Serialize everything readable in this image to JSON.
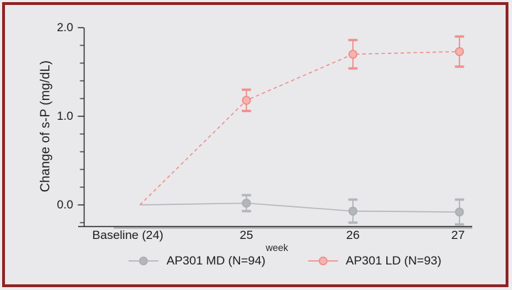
{
  "frame": {
    "border_color": "#8e2426",
    "background_color": "#e9e9eb"
  },
  "chart_data": {
    "type": "line",
    "title": "",
    "xlabel": "week",
    "ylabel": "Change of s-P (mg/dL)",
    "categories": [
      "Baseline (24)",
      "25",
      "26",
      "27"
    ],
    "x_tick_labels": [
      "Baseline (24)",
      "25",
      "26",
      "27"
    ],
    "y_tick_labels": [
      "0.0",
      "1.0",
      "2.0"
    ],
    "y_major_ticks": [
      0.0,
      1.0,
      2.0
    ],
    "y_minor_tick_step": 0.2,
    "ylim": [
      -0.24,
      2.0
    ],
    "grid": false,
    "legend_position": "bottom",
    "axis_color": "#2b2b2b",
    "series": [
      {
        "name": "AP301 MD (N=94)",
        "color": "#b4b7ba",
        "marker_fill": "#b4b7ba",
        "marker_stroke": "#aaadb0",
        "line_style": "solid",
        "values": [
          0.0,
          0.02,
          -0.07,
          -0.08
        ],
        "errors": [
          null,
          0.09,
          0.13,
          0.14
        ]
      },
      {
        "name": "AP301 LD (N=93)",
        "color": "#f0918e",
        "marker_fill": "#f5b3b0",
        "marker_stroke": "#ee8a87",
        "line_style": "dashed",
        "values": [
          0.0,
          1.18,
          1.7,
          1.73
        ],
        "errors": [
          null,
          0.12,
          0.16,
          0.17
        ]
      }
    ]
  }
}
